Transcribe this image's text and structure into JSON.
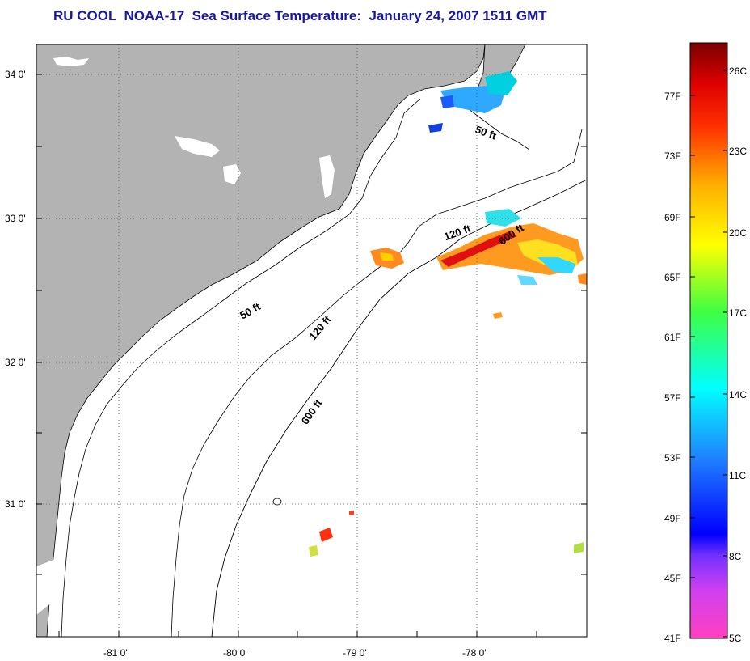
{
  "title": "RU COOL  NOAA-17  Sea Surface Temperature:  January 24, 2007 1511 GMT",
  "map": {
    "lat_ticks": [
      {
        "value": 34,
        "label": "34 0'"
      },
      {
        "value": 33,
        "label": "33 0'"
      },
      {
        "value": 32,
        "label": "32 0'"
      },
      {
        "value": 31,
        "label": "31 0'"
      }
    ],
    "lon_ticks": [
      {
        "value": -81,
        "label": "-81 0'"
      },
      {
        "value": -80,
        "label": "-80 0'"
      },
      {
        "value": -79,
        "label": "-79 0'"
      },
      {
        "value": -78,
        "label": "-78 0'"
      }
    ],
    "depth_labels": [
      "50 ft",
      "50 ft",
      "120 ft",
      "120 ft",
      "600 ft",
      "600 ft"
    ],
    "colors": {
      "land": "#b3b3b3",
      "sea": "#ffffff",
      "contour": "#000000",
      "grid": "#555555"
    }
  },
  "colorbar": {
    "fahrenheit": [
      "77F",
      "73F",
      "69F",
      "65F",
      "61F",
      "57F",
      "53F",
      "49F",
      "45F",
      "41F"
    ],
    "celsius": [
      "26C",
      "23C",
      "20C",
      "17C",
      "14C",
      "11C",
      "8C",
      "5C"
    ]
  }
}
